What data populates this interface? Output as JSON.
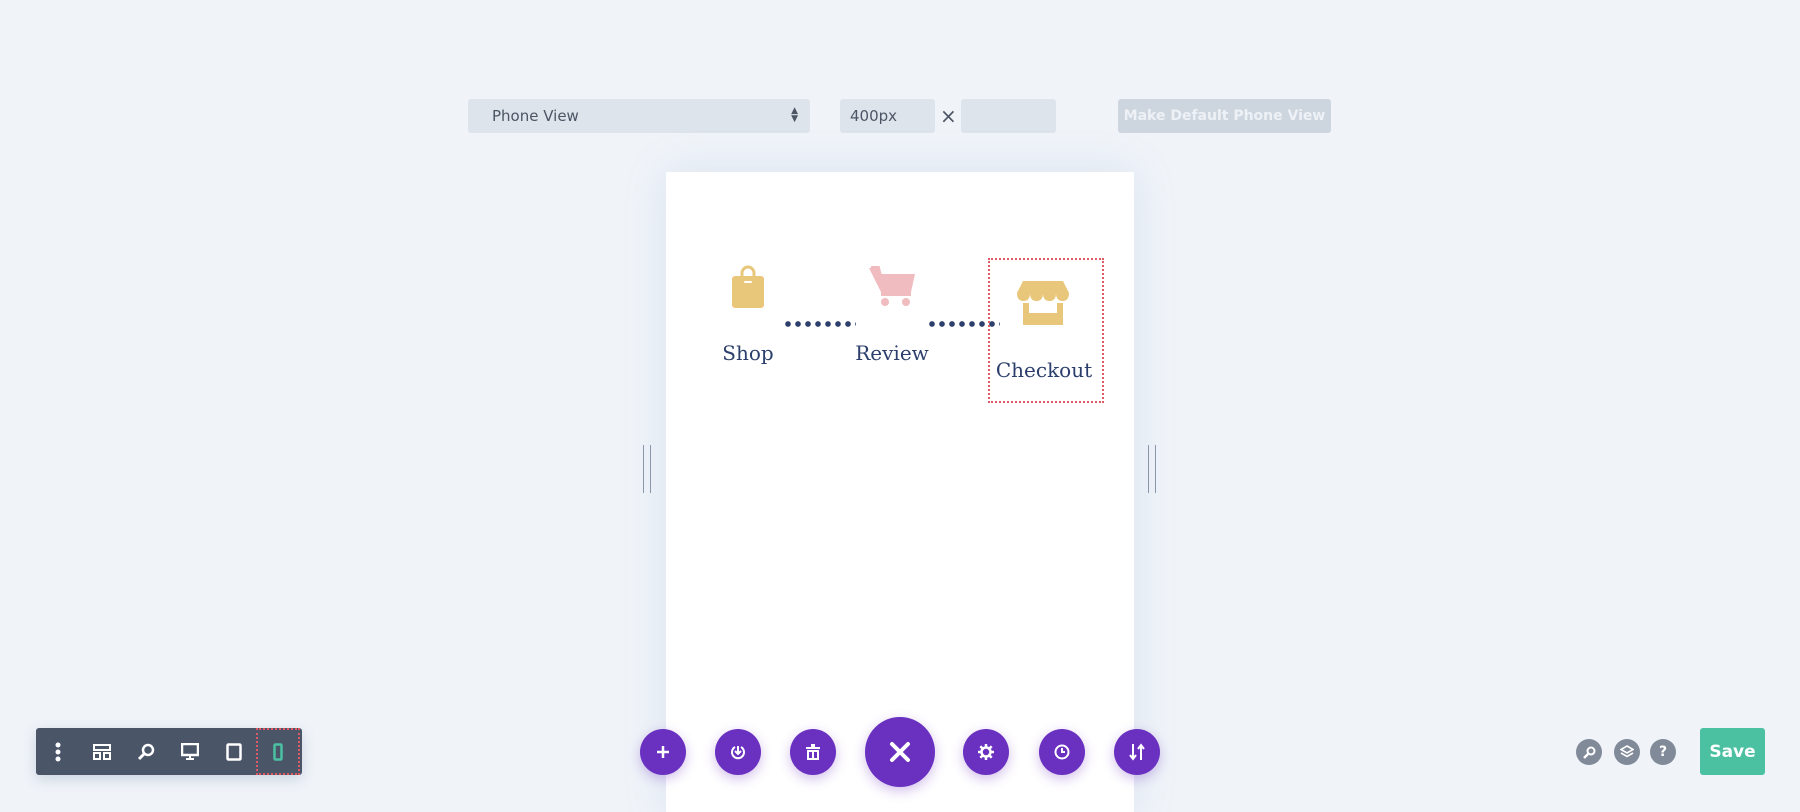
{
  "view_bar": {
    "view_select": "Phone View",
    "width_value": "400px",
    "times": "×",
    "height_value": "",
    "make_default_label": "Make Default Phone View"
  },
  "steps": [
    {
      "label": "Shop",
      "icon": "shopping-bag-icon"
    },
    {
      "label": "Review",
      "icon": "shopping-cart-icon"
    },
    {
      "label": "Checkout",
      "icon": "store-icon"
    }
  ],
  "colors": {
    "accent": "#6a30c0",
    "save": "#4bc1a2",
    "icon_gold": "#e8c67a",
    "icon_pink": "#f0bcbf",
    "text": "#2c3e6b"
  },
  "bottom_toolbar": [
    "menu-icon",
    "layout-icon",
    "zoom-icon",
    "desktop-icon",
    "tablet-icon",
    "phone-icon"
  ],
  "actions": [
    "add-icon",
    "power-icon",
    "trash-icon",
    "close-icon",
    "gear-icon",
    "history-icon",
    "sort-icon"
  ],
  "right": {
    "save_label": "Save",
    "help": "?"
  }
}
